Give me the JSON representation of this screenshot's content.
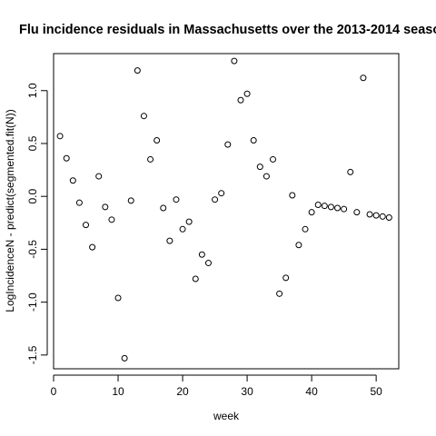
{
  "chart_data": {
    "type": "scatter",
    "title": "Flu incidence residuals in Massachusetts over the 2013-2014 seaso",
    "xlabel": "week",
    "ylabel": "LogIncidenceN - predict(segmented.fit(N))",
    "xlim": [
      0,
      53.5
    ],
    "ylim": [
      -1.63,
      1.35
    ],
    "x_ticks": [
      0,
      10,
      20,
      30,
      40,
      50
    ],
    "y_ticks": [
      -1.5,
      -1.0,
      -0.5,
      0.0,
      0.5,
      1.0
    ],
    "y_tick_labels": [
      "-1.5",
      "-1.0",
      "-0.5",
      "0.0",
      "0.5",
      "1.0"
    ],
    "marker": "open-circle",
    "grid": false,
    "points": [
      {
        "x": 1,
        "y": 0.57
      },
      {
        "x": 2,
        "y": 0.36
      },
      {
        "x": 3,
        "y": 0.15
      },
      {
        "x": 4,
        "y": -0.06
      },
      {
        "x": 5,
        "y": -0.27
      },
      {
        "x": 6,
        "y": -0.48
      },
      {
        "x": 7,
        "y": 0.19
      },
      {
        "x": 8,
        "y": -0.1
      },
      {
        "x": 9,
        "y": -0.22
      },
      {
        "x": 10,
        "y": -0.96
      },
      {
        "x": 11,
        "y": -1.53
      },
      {
        "x": 12,
        "y": -0.04
      },
      {
        "x": 13,
        "y": 1.19
      },
      {
        "x": 14,
        "y": 0.76
      },
      {
        "x": 15,
        "y": 0.35
      },
      {
        "x": 16,
        "y": 0.53
      },
      {
        "x": 17,
        "y": -0.11
      },
      {
        "x": 18,
        "y": -0.42
      },
      {
        "x": 19,
        "y": -0.03
      },
      {
        "x": 20,
        "y": -0.31
      },
      {
        "x": 21,
        "y": -0.24
      },
      {
        "x": 22,
        "y": -0.78
      },
      {
        "x": 23,
        "y": -0.55
      },
      {
        "x": 24,
        "y": -0.63
      },
      {
        "x": 25,
        "y": -0.03
      },
      {
        "x": 26,
        "y": 0.03
      },
      {
        "x": 27,
        "y": 0.49
      },
      {
        "x": 28,
        "y": 1.28
      },
      {
        "x": 29,
        "y": 0.91
      },
      {
        "x": 30,
        "y": 0.97
      },
      {
        "x": 31,
        "y": 0.53
      },
      {
        "x": 32,
        "y": 0.28
      },
      {
        "x": 33,
        "y": 0.19
      },
      {
        "x": 34,
        "y": 0.35
      },
      {
        "x": 35,
        "y": -0.92
      },
      {
        "x": 36,
        "y": -0.77
      },
      {
        "x": 37,
        "y": 0.01
      },
      {
        "x": 38,
        "y": -0.46
      },
      {
        "x": 39,
        "y": -0.31
      },
      {
        "x": 40,
        "y": -0.15
      },
      {
        "x": 41,
        "y": -0.08
      },
      {
        "x": 42,
        "y": -0.09
      },
      {
        "x": 43,
        "y": -0.1
      },
      {
        "x": 44,
        "y": -0.11
      },
      {
        "x": 45,
        "y": -0.12
      },
      {
        "x": 46,
        "y": 0.23
      },
      {
        "x": 47,
        "y": -0.15
      },
      {
        "x": 48,
        "y": 1.12
      },
      {
        "x": 49,
        "y": -0.17
      },
      {
        "x": 50,
        "y": -0.18
      },
      {
        "x": 51,
        "y": -0.19
      },
      {
        "x": 52,
        "y": -0.2
      }
    ]
  }
}
